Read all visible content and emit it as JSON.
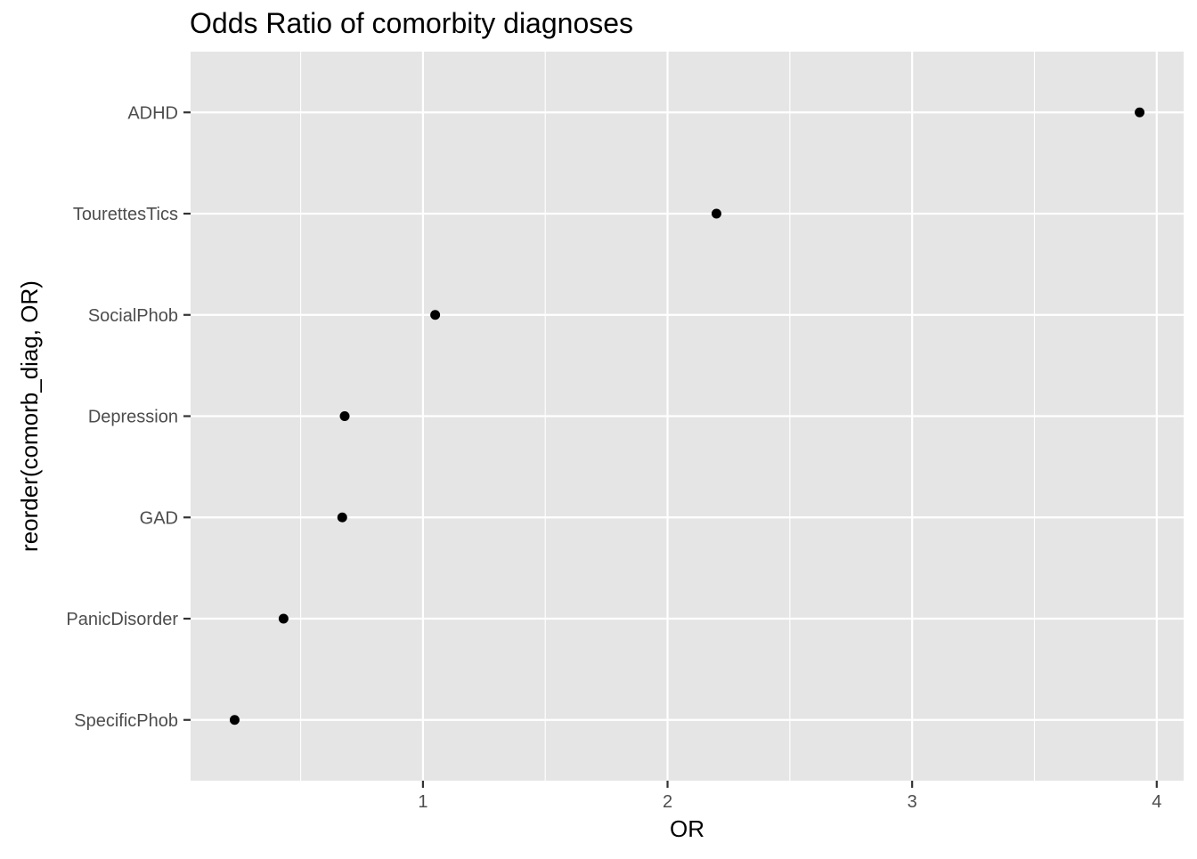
{
  "chart_data": {
    "type": "scatter",
    "title": "Odds Ratio of comorbity diagnoses",
    "xlabel": "OR",
    "ylabel": "reorder(comorb_diag, OR)",
    "categories": [
      "SpecificPhob",
      "PanicDisorder",
      "GAD",
      "Depression",
      "SocialPhob",
      "TourettesTics",
      "ADHD"
    ],
    "values": [
      0.23,
      0.43,
      0.67,
      0.68,
      1.05,
      2.2,
      3.93
    ],
    "xlim": [
      0.05,
      4.11
    ],
    "x_ticks": [
      1,
      2,
      3,
      4
    ],
    "x_tick_labels": [
      "1",
      "2",
      "3",
      "4"
    ],
    "grid": true,
    "panel_background": "#e5e5e5",
    "grid_color": "#ffffff",
    "point_color": "#000000",
    "tick_color": "#333333",
    "label_color": "#4d4d4d"
  }
}
